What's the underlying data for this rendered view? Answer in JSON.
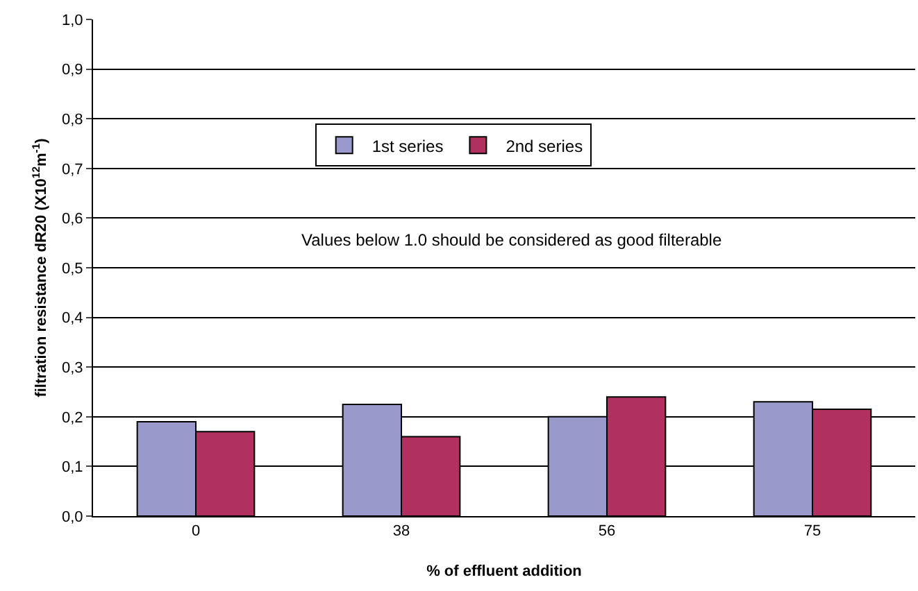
{
  "chart_data": {
    "type": "bar",
    "xlabel": "% of effluent addition",
    "ylabel": "filtration resistance dR20 (X10$^{12}$m$^{-1}$)",
    "categories": [
      "0",
      "38",
      "56",
      "75"
    ],
    "series": [
      {
        "name": "1st series",
        "color": "#9999cc",
        "values": [
          0.19,
          0.225,
          0.2,
          0.23
        ]
      },
      {
        "name": "2nd series",
        "color": "#b03060",
        "values": [
          0.17,
          0.16,
          0.24,
          0.215
        ]
      }
    ],
    "ylim": [
      0,
      1
    ],
    "yticks": [
      {
        "value": 0,
        "label": "0,0"
      },
      {
        "value": 0.1,
        "label": "0,1"
      },
      {
        "value": 0.2,
        "label": "0,2"
      },
      {
        "value": 0.3,
        "label": "0,3"
      },
      {
        "value": 0.4,
        "label": "0,4"
      },
      {
        "value": 0.5,
        "label": "0,5"
      },
      {
        "value": 0.6,
        "label": "0,6"
      },
      {
        "value": 0.7,
        "label": "0,7"
      },
      {
        "value": 0.8,
        "label": "0,8"
      },
      {
        "value": 0.9,
        "label": "0,9"
      },
      {
        "value": 1,
        "label": "1,0"
      }
    ],
    "grid": "y",
    "legend": "top left",
    "annotations": [
      "Values below 1.0 should be considered as good filterable"
    ]
  }
}
